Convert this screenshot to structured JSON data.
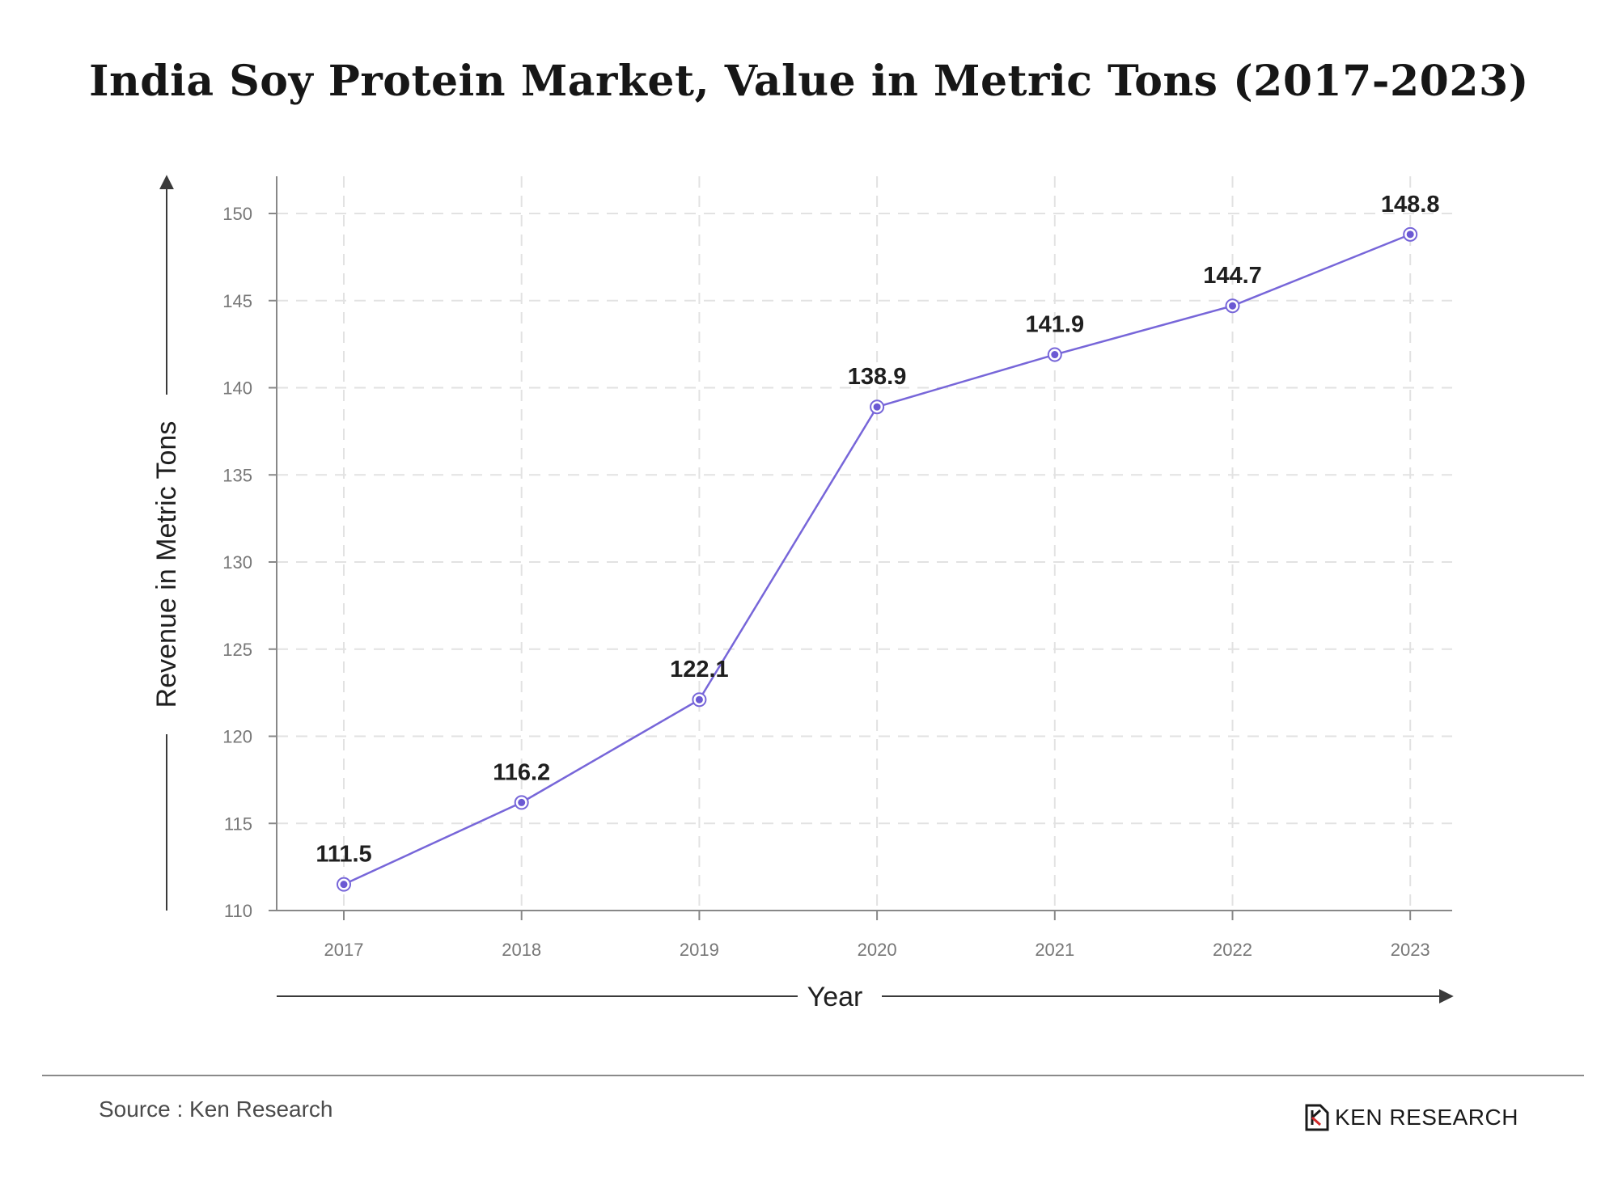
{
  "title": "India Soy Protein Market, Value in Metric Tons (2017-2023)",
  "source": "Source : Ken Research",
  "brand": {
    "name": "KEN RESEARCH"
  },
  "colors": {
    "line": "#7766d9",
    "point_fill": "#6b59d3",
    "label": "#1f1f1f",
    "tick_label": "#777777",
    "axis": "#888888",
    "grid": "#e2e2e2",
    "brand_accent": "#d22a2a"
  },
  "chart_data": {
    "type": "line",
    "title": "India Soy Protein Market, Value in Metric Tons (2017-2023)",
    "xlabel": "Year",
    "ylabel": "Revenue in Metric Tons",
    "categories": [
      "2017",
      "2018",
      "2019",
      "2020",
      "2021",
      "2022",
      "2023"
    ],
    "series": [
      {
        "values": [
          111.5,
          116.2,
          122.1,
          138.9,
          141.9,
          144.7,
          148.8
        ]
      }
    ],
    "data_labels": [
      "111.5",
      "116.2",
      "122.1",
      "138.9",
      "141.9",
      "144.7",
      "148.8"
    ],
    "yticks": [
      110,
      115,
      120,
      125,
      130,
      135,
      140,
      145,
      150
    ],
    "ylim": [
      110,
      150
    ],
    "grid": true,
    "legend": "none"
  }
}
